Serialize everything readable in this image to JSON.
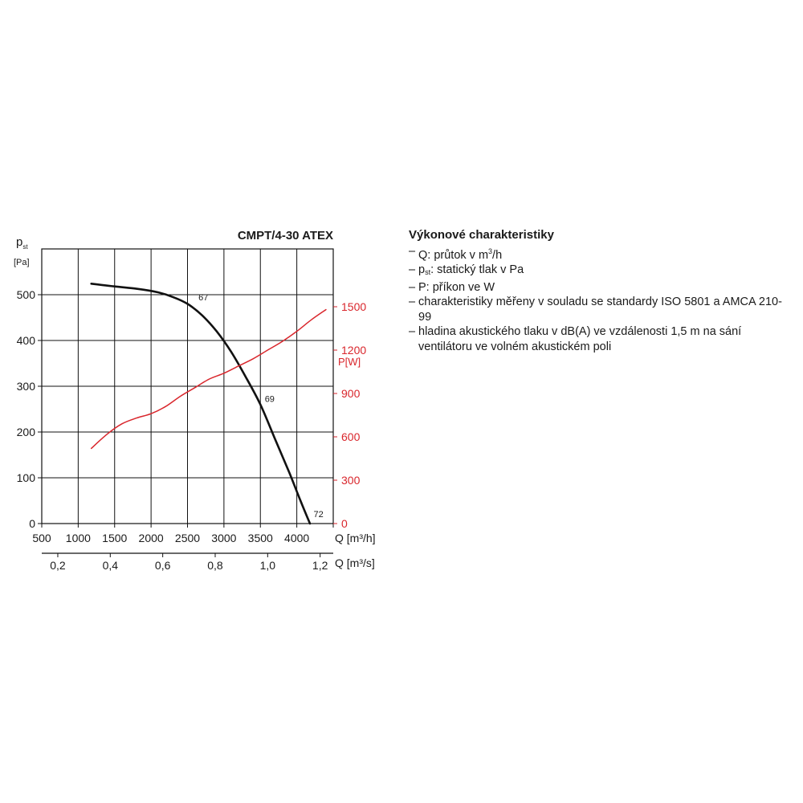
{
  "chart_data": {
    "type": "line",
    "title": "CMPT/4-30 ATEX",
    "ylabel_left": {
      "symbol": "p",
      "subscript": "st",
      "unit": "[Pa]"
    },
    "ylabel_right": "P[W]",
    "xlabel_primary": "Q [m³/h]",
    "xlabel_secondary": "Q [m³/s]",
    "x_primary_range": [
      500,
      4500
    ],
    "y_left_range": [
      0,
      600
    ],
    "y_right_range": [
      0,
      1900
    ],
    "x_primary_ticks": [
      "500",
      "1000",
      "1500",
      "2000",
      "2500",
      "3000",
      "3500",
      "4000"
    ],
    "x_secondary_ticks": [
      {
        "value": 0.2,
        "label": "0,2"
      },
      {
        "value": 0.4,
        "label": "0,4"
      },
      {
        "value": 0.6,
        "label": "0,6"
      },
      {
        "value": 0.8,
        "label": "0,8"
      },
      {
        "value": 1.0,
        "label": "1,0"
      },
      {
        "value": 1.2,
        "label": "1,2"
      }
    ],
    "y_left_ticks": [
      "0",
      "100",
      "200",
      "300",
      "400",
      "500"
    ],
    "y_right_ticks": [
      "0",
      "300",
      "600",
      "900",
      "1200",
      "1500"
    ],
    "grid": true,
    "series": [
      {
        "axis": "left",
        "color": "#111111",
        "points": [
          [
            1180,
            524
          ],
          [
            1500,
            518
          ],
          [
            1800,
            513
          ],
          [
            2100,
            505
          ],
          [
            2300,
            495
          ],
          [
            2500,
            480
          ],
          [
            2700,
            455
          ],
          [
            2900,
            420
          ],
          [
            3100,
            375
          ],
          [
            3300,
            320
          ],
          [
            3500,
            260
          ],
          [
            3700,
            185
          ],
          [
            3900,
            110
          ],
          [
            4050,
            50
          ],
          [
            4180,
            0
          ]
        ]
      },
      {
        "axis": "right",
        "color": "#d9262c",
        "points": [
          [
            1180,
            520
          ],
          [
            1400,
            620
          ],
          [
            1600,
            690
          ],
          [
            1800,
            730
          ],
          [
            2000,
            760
          ],
          [
            2200,
            810
          ],
          [
            2400,
            880
          ],
          [
            2600,
            940
          ],
          [
            2800,
            1000
          ],
          [
            3000,
            1040
          ],
          [
            3200,
            1090
          ],
          [
            3400,
            1140
          ],
          [
            3600,
            1200
          ],
          [
            3800,
            1260
          ],
          [
            4000,
            1330
          ],
          [
            4200,
            1410
          ],
          [
            4400,
            1480
          ]
        ]
      }
    ],
    "annotations": [
      {
        "text": "67",
        "x": 2650,
        "y": 488
      },
      {
        "text": "69",
        "x": 3560,
        "y": 266
      },
      {
        "text": "72",
        "x": 4230,
        "y": 14
      }
    ]
  },
  "legend": {
    "title": "Výkonové charakteristiky",
    "items": [
      {
        "dash": "–",
        "pre": "Q: průtok v m",
        "sup": "3",
        "post": "/h"
      },
      {
        "dash": "–",
        "pre": "p",
        "sub": "st",
        "post": ": statický tlak v Pa"
      },
      {
        "dash": "–",
        "pre": "P: příkon ve W"
      },
      {
        "dash": "–",
        "pre": "charakteristiky měřeny v souladu se standardy ISO 5801 a AMCA 210-99"
      },
      {
        "dash": "–",
        "pre": "hladina akustického tlaku v dB(A) ve vzdálenosti 1,5 m na sání ventilátoru ve volném akustickém poli"
      }
    ]
  }
}
